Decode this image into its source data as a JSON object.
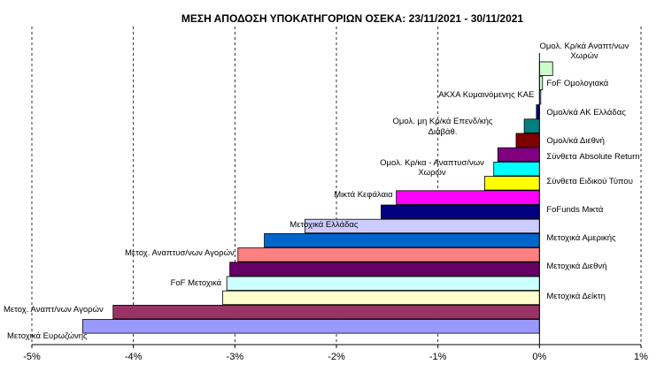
{
  "chart_data": {
    "type": "bar",
    "orientation": "horizontal",
    "title": "ΜΕΣΗ ΑΠΟΔΟΣΗ ΥΠΟΚΑΤΗΓΟΡΙΩΝ  ΟΣΕΚΑ: 23/11/2021 - 30/11/2021",
    "xlabel": "",
    "ylabel": "",
    "xlim": [
      -5,
      1
    ],
    "x_ticks": [
      -5,
      -4,
      -3,
      -2,
      -1,
      0,
      1
    ],
    "x_tick_labels": [
      "-5%",
      "-4%",
      "-3%",
      "-2%",
      "-1%",
      "0%",
      "1%"
    ],
    "grid": "vertical dashed",
    "unit": "%",
    "categories": [
      "Ομολ. Κρ/κά Αναπτ/νων Χωρών",
      "FoF Ομολογιακά",
      "ΑΚΧΑ Κυμαινόμενης ΚΑΕ",
      "Ομολ/κά ΑΚ Ελλάδας",
      "Ομολ. μη Κρ/κά Επενδ/κής Διαβάθ.",
      "Ομολ/κά Διεθνή",
      "Σύνθετα Absolute Return",
      "Ομολ. Κρ/κα - Αναπτυσ/νων Χωρών",
      "Σύνθετα Ειδικού Τύπου",
      "Μικτά Κεφάλαια",
      "FoFunds Μικτά",
      "Μετοχικά Ελλάδας",
      "Μετοχικά Αμερικής",
      "Μετοχ. Αναπτυσ/νων Αγορών",
      "Μετοχικά Διεθνή",
      "FoF Μετοχικά",
      "Μετοχικά Δείκτη",
      "Μετοχ. Αναπτ/νων Αγορών",
      "Μετοχικά Ευρωζώνης"
    ],
    "values": [
      0.13,
      0.03,
      0.0,
      -0.03,
      -0.15,
      -0.23,
      -0.41,
      -0.45,
      -0.54,
      -1.41,
      -1.56,
      -2.31,
      -2.71,
      -2.97,
      -3.05,
      -3.08,
      -3.12,
      -4.2,
      -4.5
    ],
    "colors": [
      "#ccffcc",
      "#ccffcc",
      "#99ccff",
      "#000080",
      "#008080",
      "#800000",
      "#800080",
      "#00ffff",
      "#ffff00",
      "#ff00ff",
      "#000080",
      "#ccccff",
      "#0066cc",
      "#ff8080",
      "#660066",
      "#ccffff",
      "#ffffcc",
      "#993366",
      "#9999ff"
    ]
  }
}
